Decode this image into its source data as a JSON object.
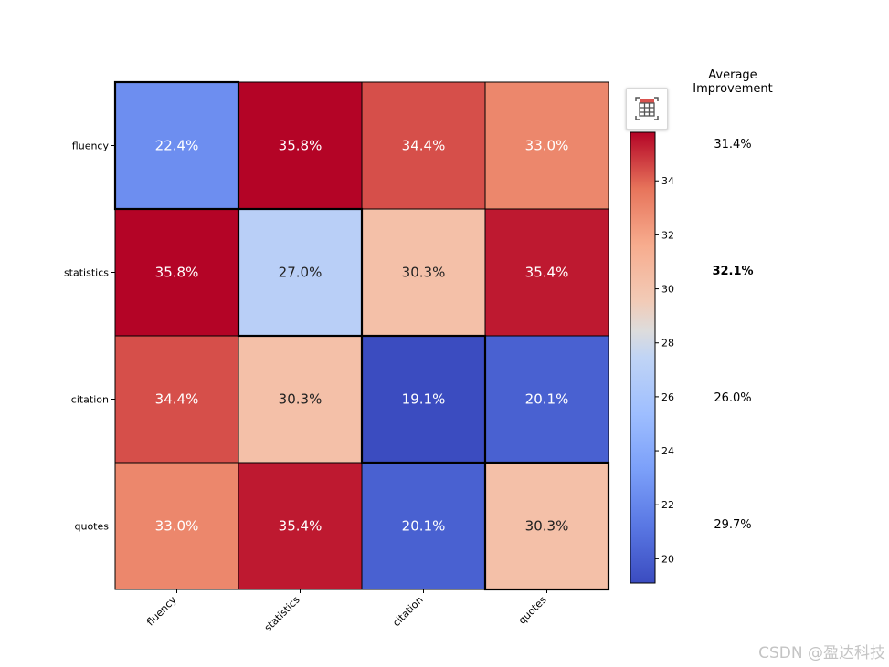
{
  "chart_data": {
    "type": "heatmap",
    "rows": [
      "fluency",
      "statistics",
      "citation",
      "quotes"
    ],
    "cols": [
      "fluency",
      "statistics",
      "citation",
      "quotes"
    ],
    "values": [
      [
        22.4,
        35.8,
        34.4,
        33.0
      ],
      [
        35.8,
        27.0,
        30.3,
        35.4
      ],
      [
        34.4,
        30.3,
        19.1,
        20.1
      ],
      [
        33.0,
        35.4,
        20.1,
        30.3
      ]
    ],
    "cell_labels": [
      [
        "22.4%",
        "35.8%",
        "34.4%",
        "33.0%"
      ],
      [
        "35.8%",
        "27.0%",
        "30.3%",
        "35.4%"
      ],
      [
        "34.4%",
        "30.3%",
        "19.1%",
        "20.1%"
      ],
      [
        "33.0%",
        "35.4%",
        "20.1%",
        "30.3%"
      ]
    ],
    "colormap": "coolwarm",
    "vmin": 19.1,
    "vmax": 35.8,
    "colorbar_ticks": [
      20,
      22,
      24,
      26,
      28,
      30,
      32,
      34
    ],
    "average_improvement": {
      "title_line1": "Average",
      "title_line2": "Improvement",
      "values": [
        "31.4%",
        "32.1%",
        "26.0%",
        "29.7%"
      ],
      "bold_index": 1
    }
  },
  "watermark": "CSDN @盈达科技",
  "toolbar": {
    "icon": "table-icon"
  }
}
